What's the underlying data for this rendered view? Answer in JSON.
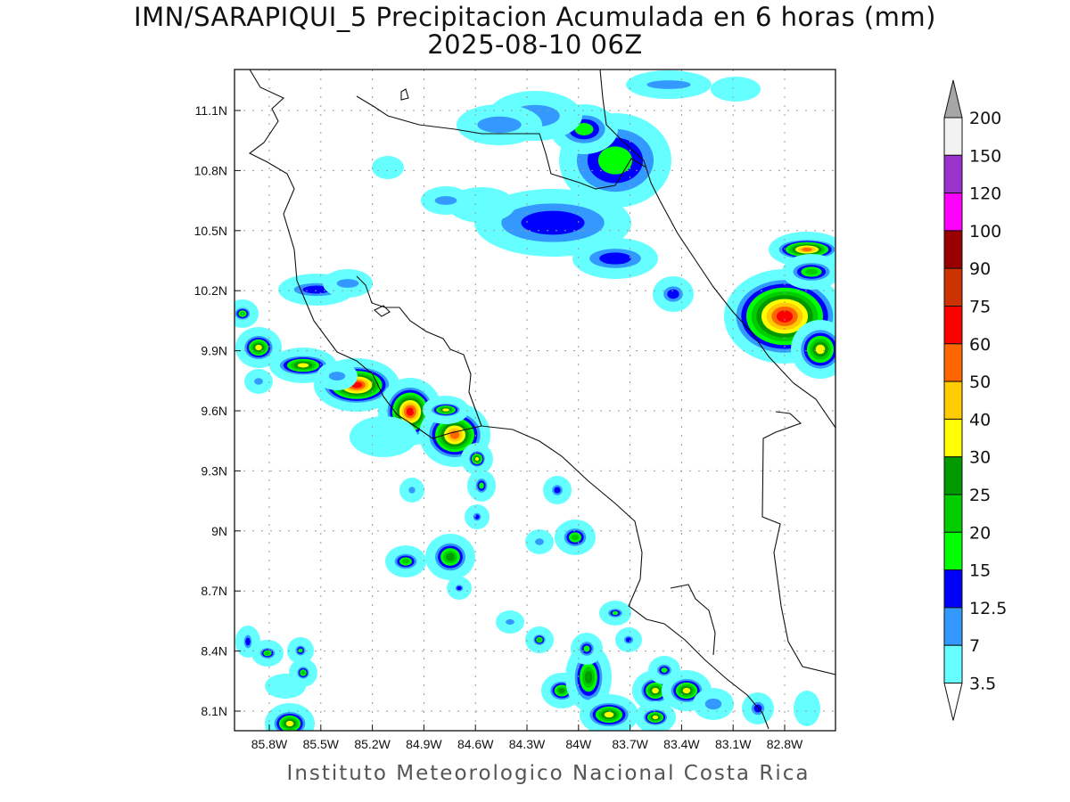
{
  "title": "IMN/SARAPIQUI_5 Precipitacion Acumulada en 6 horas (mm)",
  "subtitle": "2025-08-10 06Z",
  "footer": "Instituto Meteorologico Nacional Costa Rica",
  "map": {
    "lat_labels": [
      "11.1N",
      "10.8N",
      "10.5N",
      "10.2N",
      "9.9N",
      "9.6N",
      "9.3N",
      "9N",
      "8.7N",
      "8.4N",
      "8.1N"
    ],
    "lon_labels": [
      "85.8W",
      "85.5W",
      "85.2W",
      "84.9W",
      "84.6W",
      "84.3W",
      "84W",
      "83.7W",
      "83.4W",
      "83.1W",
      "82.8W"
    ]
  },
  "legend": {
    "units": "mm",
    "over_color": "#a6a6a6",
    "under_color": "#ffffff",
    "labels": [
      "200",
      "150",
      "120",
      "100",
      "90",
      "75",
      "60",
      "50",
      "40",
      "30",
      "25",
      "20",
      "15",
      "12.5",
      "7",
      "3.5"
    ],
    "colors": [
      "#f2f2f2",
      "#9933cc",
      "#ff00ff",
      "#990000",
      "#cc3300",
      "#ff0000",
      "#ff6600",
      "#ffcc00",
      "#ffff00",
      "#009900",
      "#00cc00",
      "#00ff00",
      "#0000ff",
      "#3399ff",
      "#66ffff"
    ]
  }
}
